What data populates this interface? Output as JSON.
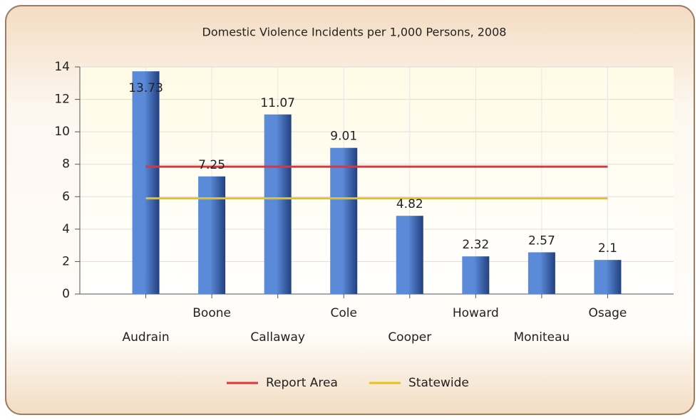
{
  "chart_data": {
    "type": "bar",
    "title": "Domestic Violence Incidents per 1,000 Persons, 2008",
    "categories": [
      "Audrain",
      "Boone",
      "Callaway",
      "Cole",
      "Cooper",
      "Howard",
      "Moniteau",
      "Osage"
    ],
    "values": [
      13.73,
      7.25,
      11.07,
      9.01,
      4.82,
      2.32,
      2.57,
      2.1
    ],
    "color": "#5a8ad8",
    "series": [
      {
        "name": "Report Area",
        "color": "#d9363e",
        "values": [
          7.85,
          7.85,
          7.85,
          7.85,
          7.85,
          7.85,
          7.85,
          7.85
        ]
      },
      {
        "name": "Statewide",
        "color": "#e8c21c",
        "values": [
          5.9,
          5.9,
          5.9,
          5.9,
          5.9,
          5.9,
          5.9,
          5.9
        ]
      }
    ],
    "ylim": [
      0,
      14
    ],
    "yticks": [
      0,
      2,
      4,
      6,
      8,
      10,
      12,
      14
    ],
    "grid": true
  }
}
